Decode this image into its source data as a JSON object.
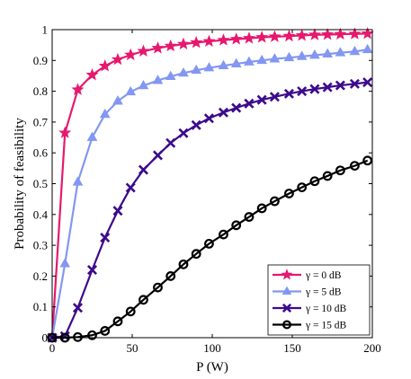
{
  "chart_data": {
    "type": "line",
    "xlabel": "P (W)",
    "ylabel": "Probability of feasibility",
    "xlim": [
      0,
      200
    ],
    "ylim": [
      0,
      1
    ],
    "xticks": [
      "0",
      "50",
      "100",
      "150",
      "200"
    ],
    "yticks": [
      "0",
      "0.1",
      "0.2",
      "0.3",
      "0.4",
      "0.5",
      "0.6",
      "0.7",
      "0.8",
      "0.9",
      "1"
    ],
    "grid": false,
    "legend_position": "bottom-right",
    "x": [
      0,
      8,
      16,
      25,
      33,
      41,
      49,
      57,
      66,
      74,
      82,
      90,
      98,
      107,
      115,
      123,
      131,
      139,
      148,
      156,
      164,
      172,
      180,
      189,
      197
    ],
    "series": [
      {
        "name": "γ = 0 dB",
        "color": "#e6196e",
        "marker": "star",
        "values": [
          0.0,
          0.665,
          0.805,
          0.853,
          0.882,
          0.903,
          0.918,
          0.93,
          0.94,
          0.947,
          0.953,
          0.958,
          0.962,
          0.966,
          0.969,
          0.972,
          0.975,
          0.977,
          0.979,
          0.981,
          0.983,
          0.984,
          0.985,
          0.986,
          0.987
        ]
      },
      {
        "name": "γ = 5 dB",
        "color": "#8397f2",
        "marker": "triangle",
        "values": [
          0.0,
          0.24,
          0.505,
          0.65,
          0.725,
          0.768,
          0.798,
          0.818,
          0.835,
          0.848,
          0.859,
          0.868,
          0.876,
          0.883,
          0.889,
          0.895,
          0.9,
          0.905,
          0.909,
          0.913,
          0.917,
          0.921,
          0.925,
          0.929,
          0.935
        ]
      },
      {
        "name": "γ = 10 dB",
        "color": "#3c0a8c",
        "marker": "x",
        "values": [
          0.0,
          0.005,
          0.097,
          0.22,
          0.325,
          0.412,
          0.487,
          0.545,
          0.592,
          0.632,
          0.664,
          0.69,
          0.712,
          0.731,
          0.746,
          0.76,
          0.772,
          0.782,
          0.792,
          0.8,
          0.807,
          0.813,
          0.819,
          0.824,
          0.829
        ]
      },
      {
        "name": "γ = 15 dB",
        "color": "#000000",
        "marker": "circle",
        "values": [
          0.0,
          0.0,
          0.002,
          0.008,
          0.022,
          0.053,
          0.085,
          0.123,
          0.163,
          0.2,
          0.238,
          0.272,
          0.305,
          0.335,
          0.365,
          0.392,
          0.42,
          0.443,
          0.468,
          0.488,
          0.508,
          0.525,
          0.543,
          0.558,
          0.575
        ]
      }
    ]
  }
}
